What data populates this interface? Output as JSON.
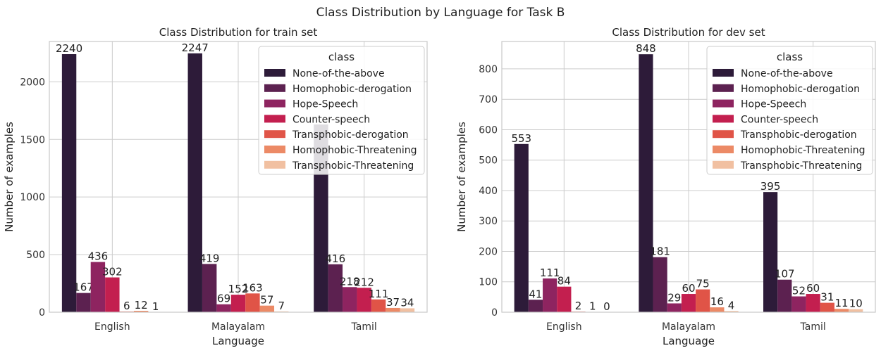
{
  "figure_title": "Class Distribution by Language for Task B",
  "chart_data": [
    {
      "type": "bar",
      "title": "Class Distribution for train set",
      "xlabel": "Language",
      "ylabel": "Number of examples",
      "categories": [
        "English",
        "Malayalam",
        "Tamil"
      ],
      "ylim": [
        0,
        2350
      ],
      "yticks": [
        0,
        500,
        1000,
        1500,
        2000
      ],
      "grid": true,
      "legend": {
        "title": "class",
        "placement": "top-right"
      },
      "series": [
        {
          "name": "None-of-the-above",
          "values": [
            2240,
            2247,
            1630
          ],
          "labels": [
            "2240",
            "2247",
            ""
          ]
        },
        {
          "name": "Homophobic-derogation",
          "values": [
            167,
            419,
            416
          ],
          "labels": [
            "167",
            "419",
            "416"
          ]
        },
        {
          "name": "Hope-Speech",
          "values": [
            436,
            69,
            218
          ],
          "labels": [
            "436",
            "69",
            "218"
          ]
        },
        {
          "name": "Counter-speech",
          "values": [
            302,
            152,
            212
          ],
          "labels": [
            "302",
            "152",
            "212"
          ]
        },
        {
          "name": "Transphobic-derogation",
          "values": [
            6,
            163,
            111
          ],
          "labels": [
            "6",
            "163",
            "111"
          ]
        },
        {
          "name": "Homophobic-Threatening",
          "values": [
            12,
            57,
            37
          ],
          "labels": [
            "12",
            "57",
            "37"
          ]
        },
        {
          "name": "Transphobic-Threatening",
          "values": [
            1,
            7,
            34
          ],
          "labels": [
            "1",
            "7",
            "34"
          ]
        }
      ]
    },
    {
      "type": "bar",
      "title": "Class Distribution for dev set",
      "xlabel": "Language",
      "ylabel": "Number of examples",
      "categories": [
        "English",
        "Malayalam",
        "Tamil"
      ],
      "ylim": [
        0,
        890
      ],
      "yticks": [
        0,
        100,
        200,
        300,
        400,
        500,
        600,
        700,
        800
      ],
      "grid": true,
      "legend": {
        "title": "class",
        "placement": "top-right"
      },
      "series": [
        {
          "name": "None-of-the-above",
          "values": [
            553,
            848,
            395
          ],
          "labels": [
            "553",
            "848",
            "395"
          ]
        },
        {
          "name": "Homophobic-derogation",
          "values": [
            41,
            181,
            107
          ],
          "labels": [
            "41",
            "181",
            "107"
          ]
        },
        {
          "name": "Hope-Speech",
          "values": [
            111,
            29,
            52
          ],
          "labels": [
            "111",
            "29",
            "52"
          ]
        },
        {
          "name": "Counter-speech",
          "values": [
            84,
            60,
            60
          ],
          "labels": [
            "84",
            "60",
            "60"
          ]
        },
        {
          "name": "Transphobic-derogation",
          "values": [
            2,
            75,
            31
          ],
          "labels": [
            "2",
            "75",
            "31"
          ]
        },
        {
          "name": "Homophobic-Threatening",
          "values": [
            1,
            16,
            11
          ],
          "labels": [
            "1",
            "16",
            "11"
          ]
        },
        {
          "name": "Transphobic-Threatening",
          "values": [
            0,
            4,
            10
          ],
          "labels": [
            "0",
            "4",
            "10"
          ]
        }
      ]
    }
  ],
  "colors": [
    "#2d1b39",
    "#5c2150",
    "#8e2460",
    "#c31f4f",
    "#e05447",
    "#ec8a66",
    "#f1c0a1"
  ]
}
